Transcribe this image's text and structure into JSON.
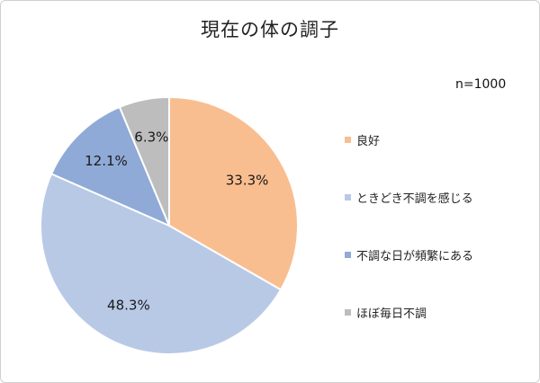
{
  "chart_data": {
    "type": "pie",
    "title": "現在の体の調子",
    "note": "n=1000",
    "legend_position": "right",
    "start_angle": "top (12 o'clock), clockwise",
    "slices": [
      {
        "label": "良好",
        "value": 33.3,
        "value_label": "33.3%",
        "color": "#f9be90"
      },
      {
        "label": "ときどき不調を感じる",
        "value": 48.3,
        "value_label": "48.3%",
        "color": "#b8c9e6"
      },
      {
        "label": "不調な日が頻繁にある",
        "value": 12.1,
        "value_label": "12.1%",
        "color": "#8faad6"
      },
      {
        "label": "ほぼ毎日不調",
        "value": 6.3,
        "value_label": "6.3%",
        "color": "#bdbdbd"
      }
    ]
  }
}
